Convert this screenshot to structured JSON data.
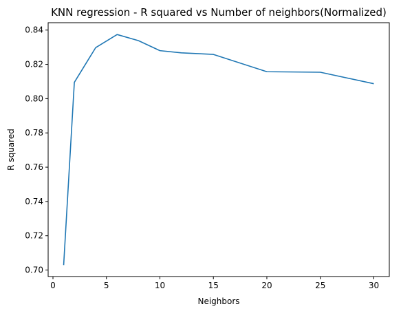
{
  "chart_data": {
    "type": "line",
    "title": "KNN regression - R squared vs Number of neighbors(Normalized)",
    "xlabel": "Neighbors",
    "ylabel": "R squared",
    "xlim": [
      -0.45,
      31.45
    ],
    "ylim": [
      0.6962,
      0.8443
    ],
    "xticks": [
      0,
      5,
      10,
      15,
      20,
      25,
      30
    ],
    "xtick_labels": [
      "0",
      "5",
      "10",
      "15",
      "20",
      "25",
      "30"
    ],
    "yticks": [
      0.7,
      0.72,
      0.74,
      0.76,
      0.78,
      0.8,
      0.82,
      0.84
    ],
    "ytick_labels": [
      "0.70",
      "0.72",
      "0.74",
      "0.76",
      "0.78",
      "0.80",
      "0.82",
      "0.84"
    ],
    "grid": false,
    "legend": "none",
    "series": [
      {
        "color": "#1f77b4",
        "x": [
          1,
          2,
          4,
          6,
          8,
          10,
          12,
          15,
          20,
          25,
          30
        ],
        "y": [
          0.7029,
          0.8095,
          0.8298,
          0.8374,
          0.8338,
          0.828,
          0.8267,
          0.8258,
          0.8157,
          0.8154,
          0.8087
        ]
      }
    ]
  }
}
